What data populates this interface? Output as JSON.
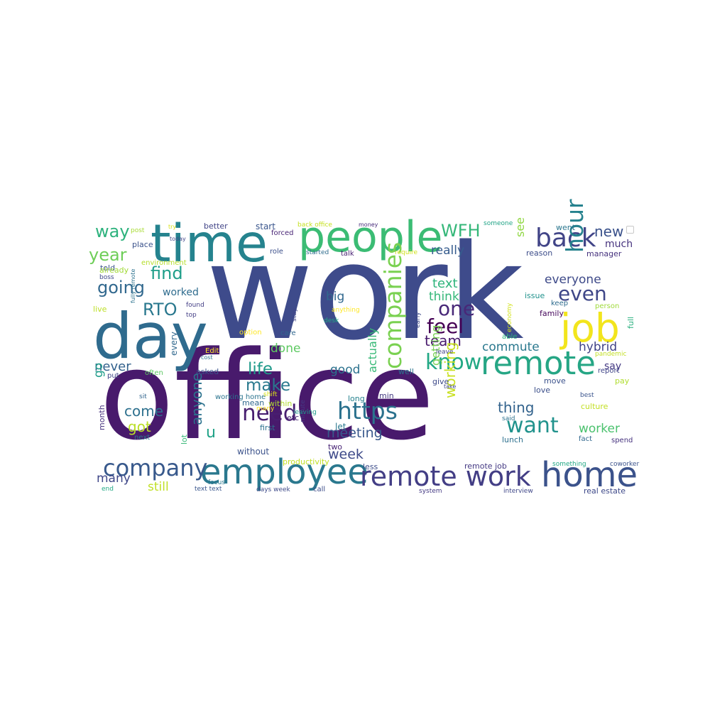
{
  "words": [
    {
      "text": "work",
      "color": "#3e4b8b"
    },
    {
      "text": "office",
      "color": "#481a6c"
    },
    {
      "text": "time",
      "color": "#25838e"
    },
    {
      "text": "people",
      "color": "#3bbc74"
    },
    {
      "text": "day",
      "color": "#2f6b8e"
    },
    {
      "text": "job",
      "color": "#f2e51d"
    },
    {
      "text": "employee",
      "color": "#2a788e"
    },
    {
      "text": "home",
      "color": "#3b528b"
    },
    {
      "text": "remote",
      "color": "#26a685"
    },
    {
      "text": "remote work",
      "color": "#433e85"
    },
    {
      "text": "company",
      "color": "#38598c"
    },
    {
      "text": "back",
      "color": "#414487"
    },
    {
      "text": "hour",
      "color": "#26828e"
    },
    {
      "text": "companies",
      "color": "#7ad151"
    },
    {
      "text": "https",
      "color": "#2c728e"
    },
    {
      "text": "need",
      "color": "#481f70"
    },
    {
      "text": "want",
      "color": "#20928c"
    },
    {
      "text": "know",
      "color": "#22a884"
    },
    {
      "text": "feel",
      "color": "#440154"
    },
    {
      "text": "one",
      "color": "#482878"
    },
    {
      "text": "even",
      "color": "#3f4788"
    },
    {
      "text": "going",
      "color": "#31688e"
    },
    {
      "text": "way",
      "color": "#2db27d"
    },
    {
      "text": "year",
      "color": "#6ece58"
    },
    {
      "text": "find",
      "color": "#1f9e89"
    },
    {
      "text": "RTO",
      "color": "#2a788e"
    },
    {
      "text": "WFH",
      "color": "#35b779"
    },
    {
      "text": "new",
      "color": "#3b528b"
    },
    {
      "text": "much",
      "color": "#46337e"
    },
    {
      "text": "everyone",
      "color": "#3e4a89"
    },
    {
      "text": "really",
      "color": "#365c8d"
    },
    {
      "text": "think",
      "color": "#35b779"
    },
    {
      "text": "text",
      "color": "#2fb47c"
    },
    {
      "text": "team",
      "color": "#481a6c"
    },
    {
      "text": "commute",
      "color": "#2a788e"
    },
    {
      "text": "hybrid",
      "color": "#414487"
    },
    {
      "text": "make",
      "color": "#29798e"
    },
    {
      "text": "life",
      "color": "#1f9a8a"
    },
    {
      "text": "good",
      "color": "#2c728e"
    },
    {
      "text": "never",
      "color": "#33628d"
    },
    {
      "text": "done",
      "color": "#5ec962"
    },
    {
      "text": "come",
      "color": "#2d708e"
    },
    {
      "text": "got",
      "color": "#bade28"
    },
    {
      "text": "u",
      "color": "#1fa287"
    },
    {
      "text": "meeting",
      "color": "#38588c"
    },
    {
      "text": "thing",
      "color": "#33638d"
    },
    {
      "text": "worker",
      "color": "#4ac16d"
    },
    {
      "text": "say",
      "color": "#443983"
    },
    {
      "text": "week",
      "color": "#3e4a89"
    },
    {
      "text": "many",
      "color": "#3f4788"
    },
    {
      "text": "still",
      "color": "#c0df25"
    },
    {
      "text": "big",
      "color": "#31688e"
    },
    {
      "text": "worked",
      "color": "#2f6c8e"
    },
    {
      "text": "told",
      "color": "#3b528b"
    },
    {
      "text": "already",
      "color": "#a2da37"
    },
    {
      "text": "live",
      "color": "#bddf26"
    },
    {
      "text": "working",
      "color": "#c8e020"
    },
    {
      "text": "anyone",
      "color": "#2c728e"
    },
    {
      "text": "getting",
      "color": "#77d153"
    },
    {
      "text": "see",
      "color": "#90d743"
    },
    {
      "text": "actually",
      "color": "#38b977"
    },
    {
      "text": "go",
      "color": "#1e9c89"
    },
    {
      "text": "better",
      "color": "#414487"
    },
    {
      "text": "start",
      "color": "#39558c"
    },
    {
      "text": "back office",
      "color": "#c5e021"
    },
    {
      "text": "money",
      "color": "#472c7a"
    },
    {
      "text": "someone",
      "color": "#20a386"
    },
    {
      "text": "went",
      "color": "#2a768e"
    },
    {
      "text": "post",
      "color": "#a8db34"
    },
    {
      "text": "try",
      "color": "#d8e219"
    },
    {
      "text": "today",
      "color": "#404688"
    },
    {
      "text": "place",
      "color": "#3b528b"
    },
    {
      "text": "forced",
      "color": "#482475"
    },
    {
      "text": "role",
      "color": "#3c4f8a"
    },
    {
      "text": "started",
      "color": "#2f6c8e"
    },
    {
      "text": "talk",
      "color": "#482173"
    },
    {
      "text": "require",
      "color": "#d0e11c"
    },
    {
      "text": "reason",
      "color": "#3d4d8a"
    },
    {
      "text": "manager",
      "color": "#46327e"
    },
    {
      "text": "environment",
      "color": "#b5de2b"
    },
    {
      "text": "boss",
      "color": "#3f4889"
    },
    {
      "text": "found",
      "color": "#433e85"
    },
    {
      "text": "top",
      "color": "#433e85"
    },
    {
      "text": "issue",
      "color": "#20928c"
    },
    {
      "text": "family",
      "color": "#46085c"
    },
    {
      "text": "keep",
      "color": "#2f6c8e"
    },
    {
      "text": "person",
      "color": "#9fda3a"
    },
    {
      "text": "full",
      "color": "#2ab07f"
    },
    {
      "text": "fully remote",
      "color": "#2c728e"
    },
    {
      "text": "stay",
      "color": "#404688"
    },
    {
      "text": "anything",
      "color": "#fde725"
    },
    {
      "text": "desk",
      "color": "#22a884"
    },
    {
      "text": "early",
      "color": "#3e4a89"
    },
    {
      "text": "economy",
      "color": "#d2e21b"
    },
    {
      "text": "able",
      "color": "#2db27d"
    },
    {
      "text": "option",
      "color": "#fde725"
    },
    {
      "text": "care",
      "color": "#31688e"
    },
    {
      "text": "every",
      "color": "#31688e"
    },
    {
      "text": "Edit",
      "color": "#fde725"
    },
    {
      "text": "cost",
      "color": "#2d718e"
    },
    {
      "text": "leave",
      "color": "#414487"
    },
    {
      "text": "pandemic",
      "color": "#c2df23"
    },
    {
      "text": "report",
      "color": "#404588"
    },
    {
      "text": "pay",
      "color": "#b0dd2f"
    },
    {
      "text": "put",
      "color": "#404688"
    },
    {
      "text": "often",
      "color": "#5dc863"
    },
    {
      "text": "asked",
      "color": "#3a548c"
    },
    {
      "text": "well",
      "color": "#2b758e"
    },
    {
      "text": "give",
      "color": "#3e4a89"
    },
    {
      "text": "take",
      "color": "#3f4788"
    },
    {
      "text": "move",
      "color": "#3b528b"
    },
    {
      "text": "love",
      "color": "#3c4f8a"
    },
    {
      "text": "sit",
      "color": "#32658e"
    },
    {
      "text": "lot",
      "color": "#37b878"
    },
    {
      "text": "working home",
      "color": "#2b748e"
    },
    {
      "text": "shift",
      "color": "#d8e219"
    },
    {
      "text": "within",
      "color": "#b0dd2f"
    },
    {
      "text": "mean",
      "color": "#31688e"
    },
    {
      "text": "min",
      "color": "#443a83"
    },
    {
      "text": "long",
      "color": "#26828e"
    },
    {
      "text": "month",
      "color": "#46327e"
    },
    {
      "text": "next",
      "color": "#2a788e"
    },
    {
      "text": "first",
      "color": "#2c728e"
    },
    {
      "text": "minute",
      "color": "#453882"
    },
    {
      "text": "leaving",
      "color": "#1f9a8a"
    },
    {
      "text": "many",
      "color": "#fde725"
    },
    {
      "text": "etc",
      "color": "#482475"
    },
    {
      "text": "let",
      "color": "#2a788e"
    },
    {
      "text": "two",
      "color": "#482475"
    },
    {
      "text": "said",
      "color": "#2d718e"
    },
    {
      "text": "culture",
      "color": "#c2df23"
    },
    {
      "text": "best",
      "color": "#3a548c"
    },
    {
      "text": "fact",
      "color": "#31688e"
    },
    {
      "text": "spend",
      "color": "#46327e"
    },
    {
      "text": "lunch",
      "color": "#2d708e"
    },
    {
      "text": "without",
      "color": "#3b528b"
    },
    {
      "text": "productivity",
      "color": "#c2df23"
    },
    {
      "text": "less",
      "color": "#3d4d8a"
    },
    {
      "text": "remote job",
      "color": "#443983"
    },
    {
      "text": "something",
      "color": "#22a884"
    },
    {
      "text": "coworker",
      "color": "#3b528b"
    },
    {
      "text": "focus",
      "color": "#2a788e"
    },
    {
      "text": "text text",
      "color": "#39558c"
    },
    {
      "text": "days week",
      "color": "#3e4a89"
    },
    {
      "text": "call",
      "color": "#3d4d8a"
    },
    {
      "text": "system",
      "color": "#443983"
    },
    {
      "text": "interview",
      "color": "#3f4788"
    },
    {
      "text": "real estate",
      "color": "#3e4989"
    },
    {
      "text": "end",
      "color": "#22a884"
    },
    {
      "text": "least",
      "color": "#3b528b"
    }
  ]
}
